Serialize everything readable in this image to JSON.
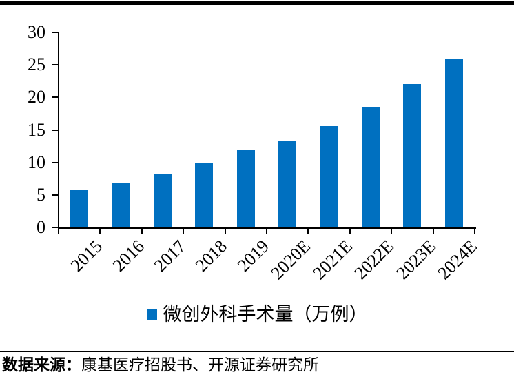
{
  "chart_data": {
    "type": "bar",
    "categories": [
      "2015",
      "2016",
      "2017",
      "2018",
      "2019",
      "2020E",
      "2021E",
      "2022E",
      "2023E",
      "2024E"
    ],
    "values": [
      5.8,
      6.9,
      8.3,
      10.0,
      11.9,
      13.2,
      15.6,
      18.6,
      22.0,
      26.0
    ],
    "title": "",
    "xlabel": "",
    "ylabel": "",
    "ylim": [
      0,
      30
    ],
    "ytick_step": 5,
    "grid": false,
    "legend": "微创外科手术量（万例）",
    "legend_position": "bottom-center",
    "bar_color": "#0070C0",
    "axis_color": "#000000"
  },
  "source": {
    "label": "数据来源：",
    "text": "康基医疗招股书、开源证券研究所"
  },
  "decor": {
    "top_rule_color": "#000000",
    "divider_color": "#000000"
  }
}
